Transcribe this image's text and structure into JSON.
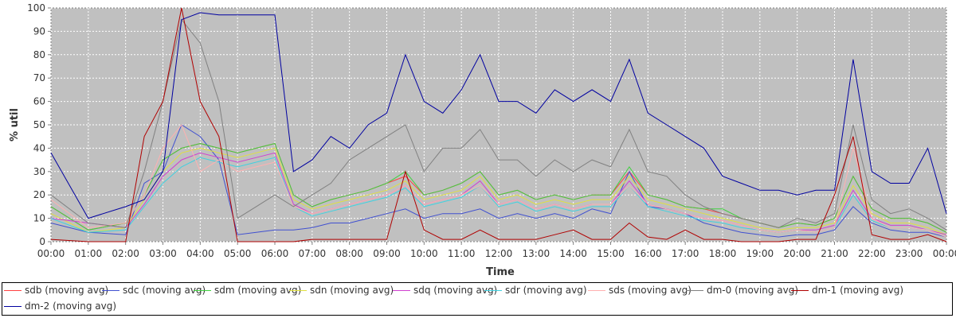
{
  "chart_data": {
    "type": "line",
    "xlabel": "Time",
    "ylabel": "% util",
    "ylim": [
      0,
      100
    ],
    "xlim_hours": [
      0,
      24
    ],
    "yticks": [
      "0",
      "10",
      "20",
      "30",
      "40",
      "50",
      "60",
      "70",
      "80",
      "90",
      "100"
    ],
    "xticks": [
      "00:00",
      "01:00",
      "02:00",
      "03:00",
      "04:00",
      "05:00",
      "06:00",
      "07:00",
      "08:00",
      "09:00",
      "10:00",
      "11:00",
      "12:00",
      "13:00",
      "14:00",
      "15:00",
      "16:00",
      "17:00",
      "18:00",
      "19:00",
      "20:00",
      "21:00",
      "22:00",
      "23:00",
      "00:00"
    ],
    "grid": true,
    "legend_position": "bottom",
    "plot_background": "#c0c0c0",
    "x": [
      "00:00",
      "01:00",
      "02:00",
      "02:30",
      "03:00",
      "03:30",
      "04:00",
      "04:30",
      "05:00",
      "05:30",
      "06:00",
      "06:30",
      "07:00",
      "07:30",
      "08:00",
      "08:30",
      "09:00",
      "09:30",
      "10:00",
      "10:30",
      "11:00",
      "11:30",
      "12:00",
      "12:30",
      "13:00",
      "13:30",
      "14:00",
      "14:30",
      "15:00",
      "15:30",
      "16:00",
      "16:30",
      "17:00",
      "17:30",
      "18:00",
      "18:30",
      "19:00",
      "19:30",
      "20:00",
      "20:30",
      "21:00",
      "21:30",
      "22:00",
      "22:30",
      "23:00",
      "23:30",
      "00:00"
    ],
    "series": [
      {
        "name": "sdb (moving avg)",
        "color": "#ff4040",
        "values": [
          15,
          5,
          8,
          20,
          35,
          40,
          42,
          40,
          38,
          40,
          42,
          20,
          15,
          18,
          20,
          22,
          25,
          28,
          20,
          22,
          25,
          30,
          20,
          22,
          18,
          20,
          18,
          20,
          20,
          30,
          20,
          18,
          15,
          14,
          12,
          10,
          8,
          6,
          8,
          7,
          10,
          28,
          14,
          10,
          10,
          8,
          4
        ]
      },
      {
        "name": "sdc (moving avg)",
        "color": "#4050d0",
        "values": [
          8,
          4,
          3,
          25,
          30,
          50,
          45,
          35,
          3,
          4,
          5,
          5,
          6,
          8,
          8,
          10,
          12,
          14,
          10,
          12,
          12,
          14,
          10,
          12,
          10,
          12,
          10,
          14,
          12,
          30,
          15,
          14,
          12,
          8,
          6,
          4,
          3,
          2,
          3,
          3,
          5,
          15,
          8,
          5,
          4,
          4,
          2
        ]
      },
      {
        "name": "sdm (moving avg)",
        "color": "#40d040",
        "values": [
          15,
          5,
          8,
          20,
          35,
          40,
          42,
          40,
          38,
          40,
          42,
          20,
          15,
          18,
          20,
          22,
          25,
          30,
          20,
          22,
          25,
          30,
          20,
          22,
          18,
          20,
          18,
          20,
          20,
          32,
          20,
          18,
          15,
          14,
          14,
          10,
          8,
          6,
          8,
          7,
          10,
          28,
          14,
          10,
          10,
          8,
          4
        ]
      },
      {
        "name": "sdn (moving avg)",
        "color": "#e0e040",
        "values": [
          12,
          4,
          6,
          18,
          30,
          38,
          40,
          38,
          36,
          38,
          40,
          18,
          14,
          16,
          18,
          20,
          22,
          26,
          18,
          20,
          22,
          28,
          18,
          20,
          16,
          18,
          16,
          18,
          18,
          28,
          18,
          16,
          14,
          12,
          10,
          8,
          6,
          5,
          6,
          6,
          8,
          24,
          12,
          8,
          8,
          6,
          3
        ]
      },
      {
        "name": "sdq (moving avg)",
        "color": "#d040d0",
        "values": [
          10,
          8,
          6,
          16,
          28,
          35,
          38,
          36,
          34,
          36,
          38,
          16,
          12,
          14,
          16,
          18,
          20,
          24,
          16,
          18,
          20,
          26,
          16,
          18,
          14,
          16,
          14,
          16,
          16,
          26,
          16,
          14,
          12,
          10,
          9,
          7,
          5,
          4,
          5,
          5,
          7,
          22,
          10,
          7,
          7,
          5,
          3
        ]
      },
      {
        "name": "sdr (moving avg)",
        "color": "#40d0e0",
        "values": [
          10,
          4,
          5,
          15,
          25,
          32,
          36,
          34,
          32,
          34,
          36,
          15,
          11,
          13,
          15,
          17,
          19,
          23,
          15,
          17,
          19,
          24,
          15,
          17,
          13,
          15,
          13,
          15,
          15,
          24,
          15,
          13,
          11,
          9,
          8,
          6,
          5,
          4,
          5,
          4,
          6,
          20,
          9,
          6,
          6,
          5,
          2
        ]
      },
      {
        "name": "sds (moving avg)",
        "color": "#ffb0b0",
        "values": [
          18,
          6,
          8,
          20,
          40,
          50,
          30,
          35,
          30,
          32,
          34,
          15,
          12,
          14,
          16,
          18,
          20,
          24,
          16,
          18,
          20,
          24,
          16,
          18,
          14,
          16,
          14,
          16,
          16,
          24,
          16,
          14,
          12,
          10,
          9,
          7,
          5,
          4,
          5,
          4,
          6,
          40,
          10,
          6,
          6,
          5,
          2
        ]
      },
      {
        "name": "dm-0 (moving avg)",
        "color": "#808080",
        "values": [
          20,
          8,
          6,
          30,
          60,
          95,
          85,
          60,
          10,
          15,
          20,
          15,
          20,
          25,
          35,
          40,
          45,
          50,
          30,
          40,
          40,
          48,
          35,
          35,
          28,
          35,
          30,
          35,
          32,
          48,
          30,
          28,
          20,
          15,
          12,
          10,
          8,
          6,
          10,
          8,
          12,
          50,
          18,
          12,
          14,
          10,
          5
        ]
      },
      {
        "name": "dm-1 (moving avg)",
        "color": "#b00000",
        "values": [
          1,
          0,
          0,
          45,
          60,
          100,
          60,
          45,
          0,
          0,
          0,
          0,
          1,
          1,
          1,
          1,
          1,
          30,
          5,
          1,
          1,
          5,
          1,
          1,
          1,
          3,
          5,
          1,
          1,
          8,
          2,
          1,
          5,
          1,
          1,
          0,
          0,
          0,
          1,
          1,
          20,
          45,
          3,
          1,
          1,
          3,
          0
        ]
      },
      {
        "name": "dm-2 (moving avg)",
        "color": "#0000a0",
        "values": [
          38,
          10,
          15,
          18,
          30,
          95,
          98,
          97,
          97,
          97,
          97,
          30,
          35,
          45,
          40,
          50,
          55,
          80,
          60,
          55,
          65,
          80,
          60,
          60,
          55,
          65,
          60,
          65,
          60,
          78,
          55,
          50,
          45,
          40,
          28,
          25,
          22,
          22,
          20,
          22,
          22,
          78,
          30,
          25,
          25,
          40,
          12
        ]
      }
    ]
  }
}
